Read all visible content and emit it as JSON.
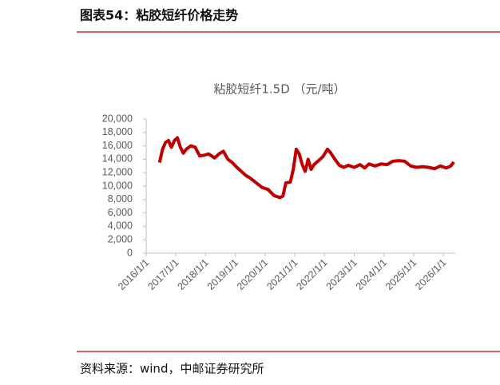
{
  "header": {
    "title": "图表54：粘胶短纤价格走势"
  },
  "chart_data": {
    "type": "line",
    "title": "粘胶短纤1.5D （元/吨）",
    "x": [
      2016.45,
      2016.55,
      2016.65,
      2016.75,
      2016.85,
      2016.95,
      2017.05,
      2017.15,
      2017.25,
      2017.35,
      2017.5,
      2017.65,
      2017.8,
      2017.95,
      2018.1,
      2018.3,
      2018.45,
      2018.6,
      2018.75,
      2018.9,
      2019.05,
      2019.2,
      2019.35,
      2019.5,
      2019.7,
      2019.9,
      2020.1,
      2020.3,
      2020.5,
      2020.6,
      2020.7,
      2020.85,
      2020.95,
      2021.05,
      2021.15,
      2021.25,
      2021.35,
      2021.45,
      2021.55,
      2021.65,
      2021.8,
      2021.95,
      2022.1,
      2022.2,
      2022.35,
      2022.5,
      2022.65,
      2022.8,
      2023.0,
      2023.2,
      2023.35,
      2023.5,
      2023.7,
      2023.9,
      2024.1,
      2024.3,
      2024.5,
      2024.7,
      2024.9,
      2025.1,
      2025.3,
      2025.5,
      2025.7,
      2025.9,
      2026.1,
      2026.25,
      2026.35
    ],
    "values": [
      13500,
      15500,
      16500,
      16800,
      15800,
      16800,
      17200,
      15800,
      14900,
      15500,
      16000,
      15800,
      14500,
      14600,
      14800,
      14200,
      14800,
      15200,
      14000,
      13500,
      12800,
      12200,
      11600,
      11200,
      10500,
      9800,
      9500,
      8600,
      8300,
      8500,
      10500,
      10600,
      12500,
      15500,
      14800,
      13200,
      12200,
      14000,
      12500,
      13200,
      13800,
      14400,
      15500,
      15000,
      14000,
      13100,
      12800,
      13100,
      12800,
      13200,
      12700,
      13300,
      13000,
      13300,
      13200,
      13700,
      13800,
      13700,
      13000,
      12800,
      12900,
      12800,
      12600,
      13000,
      12700,
      13000,
      13600
    ],
    "color": "#c00000",
    "xlim": [
      2016,
      2026.4
    ],
    "xticks": [
      {
        "value": 2016,
        "label": "2016/1/1"
      },
      {
        "value": 2017,
        "label": "2017/1/1"
      },
      {
        "value": 2018,
        "label": "2018/1/1"
      },
      {
        "value": 2019,
        "label": "2019/1/1"
      },
      {
        "value": 2020,
        "label": "2020/1/1"
      },
      {
        "value": 2021,
        "label": "2021/1/1"
      },
      {
        "value": 2022,
        "label": "2022/1/1"
      },
      {
        "value": 2023,
        "label": "2023/1/1"
      },
      {
        "value": 2024,
        "label": "2024/1/1"
      },
      {
        "value": 2025,
        "label": "2025/1/1"
      },
      {
        "value": 2026,
        "label": "2026/1/1"
      }
    ],
    "ylim": [
      0,
      20000
    ],
    "yticks": [
      0,
      {
        "value": 2000,
        "label": "2,000"
      },
      {
        "value": 4000,
        "label": "4,000"
      },
      {
        "value": 6000,
        "label": "6,000"
      },
      {
        "value": 8000,
        "label": "8,000"
      },
      {
        "value": 10000,
        "label": "10,000"
      },
      {
        "value": 12000,
        "label": "12,000"
      },
      {
        "value": 14000,
        "label": "14,000"
      },
      {
        "value": 16000,
        "label": "16,000"
      },
      {
        "value": 18000,
        "label": "18,000"
      },
      {
        "value": 20000,
        "label": "20,000"
      }
    ]
  },
  "footer": {
    "source": "资料来源：wind，中邮证券研究所"
  }
}
